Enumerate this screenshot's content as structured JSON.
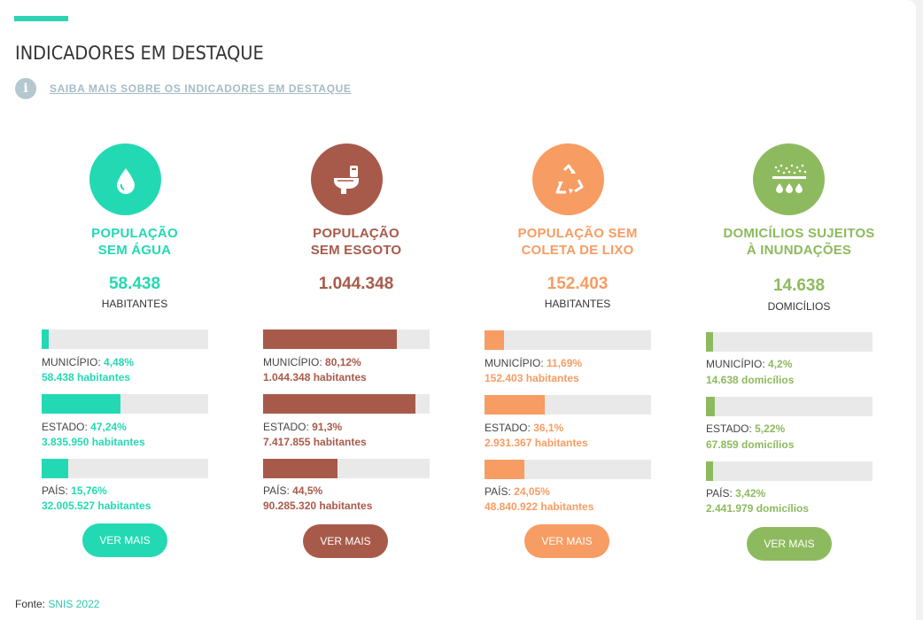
{
  "header": {
    "title": "INDICADORES EM DESTAQUE",
    "info_link": "SAIBA MAIS SOBRE OS INDICADORES EM DESTAQUE",
    "accent_color": "#2dd4b4"
  },
  "cards": [
    {
      "icon": "water-drop-icon",
      "color": "#23d9b3",
      "title_line1": "POPULAÇÃO",
      "title_line2": "SEM ÁGUA",
      "value": "58.438",
      "unit": "HABITANTES",
      "bars": [
        {
          "label": "MUNICÍPIO:",
          "pct": "4,48%",
          "fill": 0.0448,
          "sub": "58.438 habitantes"
        },
        {
          "label": "ESTADO:",
          "pct": "47,24%",
          "fill": 0.4724,
          "sub": "3.835.950 habitantes"
        },
        {
          "label": "PAÍS:",
          "pct": "15,76%",
          "fill": 0.1576,
          "sub": "32.005.527 habitantes"
        }
      ],
      "button": "VER MAIS"
    },
    {
      "icon": "toilet-icon",
      "color": "#a85a4a",
      "title_line1": "POPULAÇÃO",
      "title_line2": "SEM ESGOTO",
      "value": "1.044.348",
      "unit": "",
      "bars": [
        {
          "label": "MUNICÍPIO:",
          "pct": "80,12%",
          "fill": 0.8012,
          "sub": "1.044.348 habitantes"
        },
        {
          "label": "ESTADO:",
          "pct": "91,3%",
          "fill": 0.913,
          "sub": "7.417.855 habitantes"
        },
        {
          "label": "PAÍS:",
          "pct": "44,5%",
          "fill": 0.445,
          "sub": "90.285.320 habitantes"
        }
      ],
      "button": "VER MAIS"
    },
    {
      "icon": "recycle-icon",
      "color": "#f79c63",
      "title_line1": "POPULAÇÃO SEM",
      "title_line2": "COLETA DE LIXO",
      "value": "152.403",
      "unit": "HABITANTES",
      "bars": [
        {
          "label": "MUNICÍPIO:",
          "pct": "11,69%",
          "fill": 0.1169,
          "sub": "152.403 habitantes"
        },
        {
          "label": "ESTADO:",
          "pct": "36,1%",
          "fill": 0.361,
          "sub": "2.931.367 habitantes"
        },
        {
          "label": "PAÍS:",
          "pct": "24,05%",
          "fill": 0.2405,
          "sub": "48.840.922 habitantes"
        }
      ],
      "button": "VER MAIS"
    },
    {
      "icon": "flood-rain-icon",
      "color": "#8dba5e",
      "title_line1": "DOMICÍLIOS SUJEITOS",
      "title_line2": "À INUNDAÇÕES",
      "value": "14.638",
      "unit": "DOMICÍLIOS",
      "bars": [
        {
          "label": "MUNICÍPIO:",
          "pct": "4,2%",
          "fill": 0.042,
          "sub": "14.638 domicílios"
        },
        {
          "label": "ESTADO:",
          "pct": "5,22%",
          "fill": 0.0522,
          "sub": "67.859 domicílios"
        },
        {
          "label": "PAÍS:",
          "pct": "3,42%",
          "fill": 0.0342,
          "sub": "2.441.979 domicílios"
        }
      ],
      "button": "VER MAIS"
    }
  ],
  "footer": {
    "source_label": "Fonte:",
    "source_link": "SNIS 2022",
    "link_color": "#2cc9a9"
  }
}
